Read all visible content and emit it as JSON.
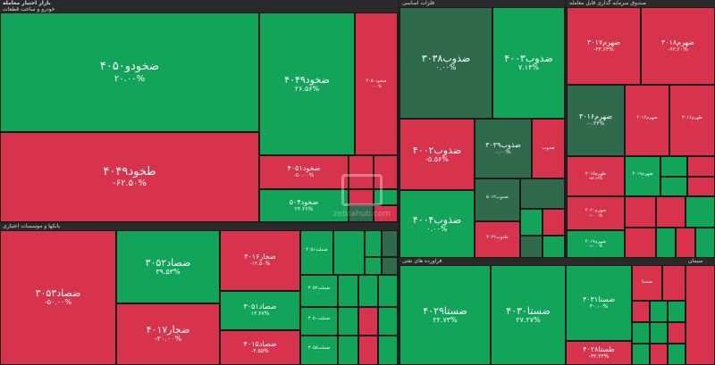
{
  "headers": {
    "auto": {
      "title": "بازار اختیار معامله",
      "subtitle": "خودرو و ساخت قطعات"
    },
    "basic": {
      "title": "فلزات اساسی"
    },
    "fund": {
      "title": "صندوق سرمایه گذاری قابل معامله"
    },
    "petro": {
      "title": "بانکها و موسسات اعتباری"
    },
    "cement": {
      "title": "فرآورده های نفتی"
    },
    "other": {
      "title": "سیمان"
    }
  },
  "tiles": {
    "khodro4050": {
      "name": "ضخودو۴۰۵۰",
      "pct": "۲۰.۰۰%"
    },
    "khodro4049": {
      "name": "ضخود۴۰۴۹",
      "pct": "۲۶.۵۶%"
    },
    "khodro4050b": {
      "name": "ضخود۴۰۵۰",
      "pct": "۰.۰۰%"
    },
    "takhodro4049": {
      "name": "طخود۴۰۴۹",
      "pct": "-۶۲.۵۰%"
    },
    "khodro4051": {
      "name": "ضخود۴۰۵۱",
      "pct": "-۵۰.۰۰%"
    },
    "khodro4052": {
      "name": "ضخود۵۰۴",
      "pct": "۲۳.۲۶%"
    },
    "zob3038": {
      "name": "ضذوب۳۰۳۸",
      "pct": "۰.۰۰%"
    },
    "zob4003": {
      "name": "ضذوب۴۰۰۳",
      "pct": "۷.۱۴%"
    },
    "zob4002": {
      "name": "ضذوب۴۰۰۲",
      "pct": "-۵.۵۶%"
    },
    "zob3039": {
      "name": "ضذوب۳۰۳۹",
      "pct": "۰.۰۰%"
    },
    "zob4004": {
      "name": "ضذوب۴۰۰۴",
      "pct": "۰.۰۰%"
    },
    "zob5012": {
      "name": "ضذوب۵۰۱۲",
      "pct": "-"
    },
    "zob3032": {
      "name": "طذوب۳۰۳۲",
      "pct": "-"
    },
    "zob_small1": {
      "name": "ضذوب",
      "pct": "-"
    },
    "fund3017": {
      "name": "ضهرم۳۰۱۷",
      "pct": "-۲۳.۶۴%"
    },
    "fund3018": {
      "name": "ضهرم۳۰۱۸",
      "pct": "-۶۳.۲۰%"
    },
    "fund3016": {
      "name": "ضهرم۳۰۱۶",
      "pct": "-۰.۲۳%"
    },
    "fund4014": {
      "name": "ضهرم۴۰۱۴",
      "pct": "-"
    },
    "fund3016b": {
      "name": "ظهرم۳۰۱۶",
      "pct": "-"
    },
    "fund3015": {
      "name": "ظهرم۳۰۱۵",
      "pct": "-۵۳.۶۹%"
    },
    "fund3019": {
      "name": "ضهرم۳۰۱۹",
      "pct": "-"
    },
    "fund4020": {
      "name": "ضهرم۴۰۲۰",
      "pct": "-۲۰.۰۰%"
    },
    "fund4017": {
      "name": "ضهرم۴۰۱۷",
      "pct": "-۲۰.۰۰%"
    },
    "sad3053": {
      "name": "ضصاد۳۰۵۳",
      "pct": "-۵۰.۰۰%"
    },
    "sad3052": {
      "name": "ضصاد۳۰۵۲",
      "pct": "۳۹.۵۳%"
    },
    "jar4016": {
      "name": "ضجار۴۰۱۶",
      "pct": "-۱۲.۵۰%"
    },
    "jar4017": {
      "name": "ضجار۴۰۱۷",
      "pct": "-۲۰.۰۰%"
    },
    "sad3051": {
      "name": "ضصاد۳۰۵۱",
      "pct": "۱۳.۶۷%"
    },
    "sad4015": {
      "name": "ضصاد۴۰۱۵",
      "pct": "-۴.۵۵%"
    },
    "mellat3051": {
      "name": "ضملت۳۰۵۱",
      "pct": "-"
    },
    "mellat3052": {
      "name": "ضملت۳۰۵۲",
      "pct": "-"
    },
    "mellat3050": {
      "name": "ضملت۳۰۵۰",
      "pct": "-"
    },
    "mellat3055": {
      "name": "ضملت۳۰۵۵",
      "pct": "-"
    },
    "seta4029": {
      "name": "ضستا۴۰۲۹",
      "pct": "۲۲.۷۳%"
    },
    "seta4030": {
      "name": "ضستا۴۰۳۰",
      "pct": "۲۷.۲۷%"
    },
    "seta4031": {
      "name": "ضستا۴۰۳۱",
      "pct": "۳۰.۰۰%"
    },
    "seta4028": {
      "name": "طستا۴۰۲۸",
      "pct": "-۳۳.۳۳%"
    },
    "seta_small": {
      "name": "ضستا",
      "pct": "-"
    }
  },
  "watermark": "zebrahub.com"
}
